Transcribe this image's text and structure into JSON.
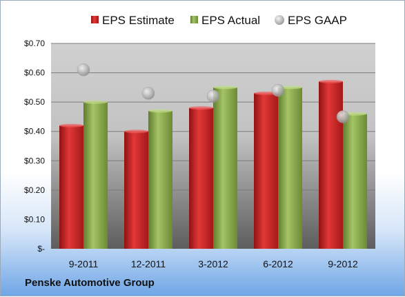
{
  "chart_data": {
    "type": "bar",
    "categories": [
      "9-2011",
      "12-2011",
      "3-2012",
      "6-2012",
      "9-2012"
    ],
    "series": [
      {
        "name": "EPS Estimate",
        "kind": "bar",
        "values": [
          0.42,
          0.4,
          0.48,
          0.53,
          0.57
        ]
      },
      {
        "name": "EPS Actual",
        "kind": "bar",
        "values": [
          0.5,
          0.47,
          0.55,
          0.55,
          0.46
        ]
      },
      {
        "name": "EPS GAAP",
        "kind": "marker",
        "values": [
          0.61,
          0.53,
          0.52,
          0.54,
          0.45
        ]
      }
    ],
    "ylim": [
      0,
      0.7
    ],
    "yticks": [
      0,
      0.1,
      0.2,
      0.3,
      0.4,
      0.5,
      0.6,
      0.7
    ],
    "ytick_labels": [
      "$-",
      "$0.10",
      "$0.20",
      "$0.30",
      "$0.40",
      "$0.50",
      "$0.60",
      "$0.70"
    ],
    "grid": true,
    "legend_position": "top"
  },
  "colors": {
    "estimate": "#d42a2a",
    "actual": "#8fb050",
    "gaap": "#b0b0b0"
  },
  "company": "Penske Automotive Group"
}
